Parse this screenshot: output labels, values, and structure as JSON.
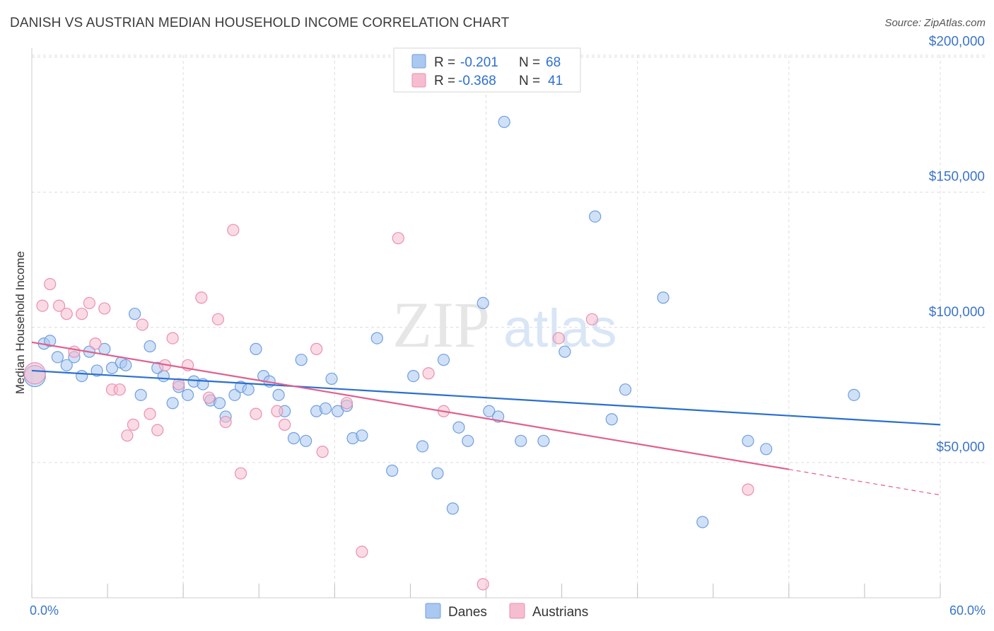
{
  "title": "DANISH VS AUSTRIAN MEDIAN HOUSEHOLD INCOME CORRELATION CHART",
  "source": "Source: ZipAtlas.com",
  "watermark": {
    "zip": "ZIP",
    "atlas": "atlas"
  },
  "colors": {
    "danes_fill": "#aac8f0",
    "danes_stroke": "#6f9fe0",
    "danes_line": "#2a6fd0",
    "austrians_fill": "#f6bdd0",
    "austrians_stroke": "#eb8fb0",
    "austrians_line": "#e0608e",
    "tick_text": "#3b74c9",
    "grid": "#dcdcdc"
  },
  "legend": {
    "rows": [
      {
        "r_label": "R =",
        "r_value": "-0.201",
        "n_label": "N =",
        "n_value": "68"
      },
      {
        "r_label": "R =",
        "r_value": "-0.368",
        "n_label": "N =",
        "n_value": "41"
      }
    ]
  },
  "bottom_legend": [
    {
      "label": "Danes"
    },
    {
      "label": "Austrians"
    }
  ],
  "chart_data": {
    "type": "scatter",
    "title": "DANISH VS AUSTRIAN MEDIAN HOUSEHOLD INCOME CORRELATION CHART",
    "xlabel": "",
    "ylabel": "Median Household Income",
    "xlim": [
      0,
      60
    ],
    "ylim": [
      0,
      205000
    ],
    "x_tick_labels": [
      "0.0%",
      "60.0%"
    ],
    "y_ticks": [
      {
        "value": 50000,
        "label": "$50,000"
      },
      {
        "value": 100000,
        "label": "$100,000"
      },
      {
        "value": 150000,
        "label": "$150,000"
      },
      {
        "value": 200000,
        "label": "$200,000"
      }
    ],
    "grid": true,
    "legend_position": "top-center",
    "series": [
      {
        "name": "Danes",
        "trend": {
          "x": [
            0,
            60
          ],
          "y": [
            84000,
            64000
          ]
        },
        "points": [
          [
            0.2,
            82000
          ],
          [
            0.8,
            94000
          ],
          [
            1.2,
            95000
          ],
          [
            1.7,
            89000
          ],
          [
            2.3,
            86000
          ],
          [
            2.8,
            89000
          ],
          [
            3.3,
            82000
          ],
          [
            3.8,
            91000
          ],
          [
            4.3,
            84000
          ],
          [
            4.8,
            92000
          ],
          [
            5.3,
            85000
          ],
          [
            5.9,
            87000
          ],
          [
            6.2,
            86000
          ],
          [
            6.8,
            105000
          ],
          [
            7.2,
            75000
          ],
          [
            7.8,
            93000
          ],
          [
            8.3,
            85000
          ],
          [
            8.7,
            82000
          ],
          [
            9.3,
            72000
          ],
          [
            9.7,
            78000
          ],
          [
            10.3,
            75000
          ],
          [
            10.7,
            80000
          ],
          [
            11.3,
            79000
          ],
          [
            11.8,
            73000
          ],
          [
            12.4,
            72000
          ],
          [
            12.8,
            67000
          ],
          [
            13.4,
            75000
          ],
          [
            13.8,
            78000
          ],
          [
            14.3,
            77000
          ],
          [
            14.8,
            92000
          ],
          [
            15.3,
            82000
          ],
          [
            15.7,
            80000
          ],
          [
            16.3,
            75000
          ],
          [
            16.7,
            69000
          ],
          [
            17.3,
            59000
          ],
          [
            17.8,
            88000
          ],
          [
            18.1,
            58000
          ],
          [
            18.8,
            69000
          ],
          [
            19.4,
            70000
          ],
          [
            19.8,
            81000
          ],
          [
            20.2,
            69000
          ],
          [
            20.8,
            71000
          ],
          [
            21.2,
            59000
          ],
          [
            21.8,
            60000
          ],
          [
            22.8,
            96000
          ],
          [
            23.8,
            47000
          ],
          [
            25.2,
            82000
          ],
          [
            25.8,
            56000
          ],
          [
            26.8,
            46000
          ],
          [
            27.8,
            33000
          ],
          [
            27.2,
            88000
          ],
          [
            28.2,
            63000
          ],
          [
            28.8,
            58000
          ],
          [
            29.8,
            109000
          ],
          [
            30.2,
            69000
          ],
          [
            30.8,
            67000
          ],
          [
            31.2,
            176000
          ],
          [
            32.3,
            58000
          ],
          [
            33.8,
            58000
          ],
          [
            35.2,
            91000
          ],
          [
            37.2,
            141000
          ],
          [
            38.3,
            66000
          ],
          [
            39.2,
            77000
          ],
          [
            41.7,
            111000
          ],
          [
            44.3,
            28000
          ],
          [
            47.3,
            58000
          ],
          [
            48.5,
            55000
          ],
          [
            54.3,
            75000
          ]
        ]
      },
      {
        "name": "Austrians",
        "trend": {
          "x": [
            0,
            50
          ],
          "y": [
            94500,
            47500
          ]
        },
        "trend_dashed": {
          "x": [
            50,
            60
          ],
          "y": [
            47500,
            38000
          ]
        },
        "points": [
          [
            0.2,
            83000
          ],
          [
            0.7,
            108000
          ],
          [
            1.2,
            116000
          ],
          [
            1.8,
            108000
          ],
          [
            2.3,
            105000
          ],
          [
            2.8,
            91000
          ],
          [
            3.3,
            105000
          ],
          [
            3.8,
            109000
          ],
          [
            4.2,
            94000
          ],
          [
            4.8,
            107000
          ],
          [
            5.3,
            77000
          ],
          [
            5.8,
            77000
          ],
          [
            6.3,
            60000
          ],
          [
            6.7,
            64000
          ],
          [
            7.3,
            101000
          ],
          [
            7.8,
            68000
          ],
          [
            8.3,
            62000
          ],
          [
            8.8,
            86000
          ],
          [
            9.3,
            96000
          ],
          [
            9.7,
            79000
          ],
          [
            10.3,
            86000
          ],
          [
            11.2,
            111000
          ],
          [
            11.7,
            74000
          ],
          [
            12.3,
            103000
          ],
          [
            12.8,
            65000
          ],
          [
            13.3,
            136000
          ],
          [
            13.8,
            46000
          ],
          [
            14.8,
            68000
          ],
          [
            16.2,
            69000
          ],
          [
            16.7,
            64000
          ],
          [
            18.8,
            92000
          ],
          [
            19.2,
            54000
          ],
          [
            20.8,
            72000
          ],
          [
            21.8,
            17000
          ],
          [
            24.2,
            133000
          ],
          [
            26.2,
            83000
          ],
          [
            27.2,
            69000
          ],
          [
            29.8,
            5000
          ],
          [
            34.8,
            96000
          ],
          [
            37.0,
            103000
          ],
          [
            47.3,
            40000
          ]
        ]
      }
    ]
  }
}
